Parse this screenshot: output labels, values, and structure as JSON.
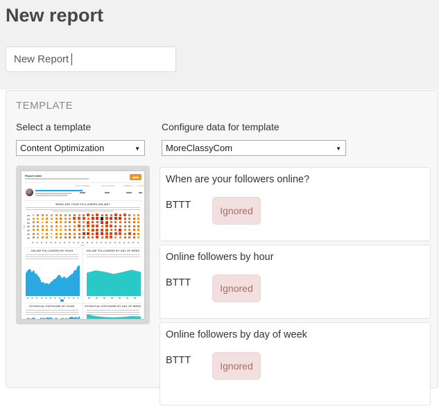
{
  "page": {
    "heading": "New report"
  },
  "report_name_input": {
    "value": "New Report"
  },
  "template_section": {
    "heading": "TEMPLATE",
    "select_template_label": "Select a template",
    "selected_template": "Content Optimization",
    "configure_label": "Configure data for template",
    "selected_data_source": "MoreClassyCom",
    "dropdown_arrow": "▼"
  },
  "thumbnail": {
    "report_name": "Report name",
    "table_headers": [
      "FOLLOWERS",
      "FOLLOWING",
      "TWEETS",
      "LISTS"
    ],
    "punchcard_title": "WHEN ARE YOUR FOLLOWERS ONLINE?",
    "axis_x_label": "Hour",
    "axis_y_label": "Day",
    "panel_titles": [
      "ONLINE FOLLOWERS BY HOUR",
      "ONLINE FOLLOWERS BY DAY OF WEEK",
      "POTENTIAL EXPOSURE BY HOUR",
      "POTENTIAL EXPOSURE BY DAY OF WEEK"
    ],
    "colors": {
      "accent_orange": "#f7941e",
      "chart_blue": "#29a9e0",
      "chart_teal": "#2bc8c8",
      "dot_black": "#1a1a1a",
      "dot_palette": [
        "#f6c363",
        "#f3aa3c",
        "#f0911f",
        "#ea6c12",
        "#e4490e",
        "#dd2a0c"
      ]
    }
  },
  "modules": [
    {
      "title": "When are your followers online?",
      "code": "BTTT",
      "status": "Ignored"
    },
    {
      "title": "Online followers by hour",
      "code": "BTTT",
      "status": "Ignored"
    },
    {
      "title": "Online followers by day of week",
      "code": "BTTT",
      "status": "Ignored"
    }
  ]
}
